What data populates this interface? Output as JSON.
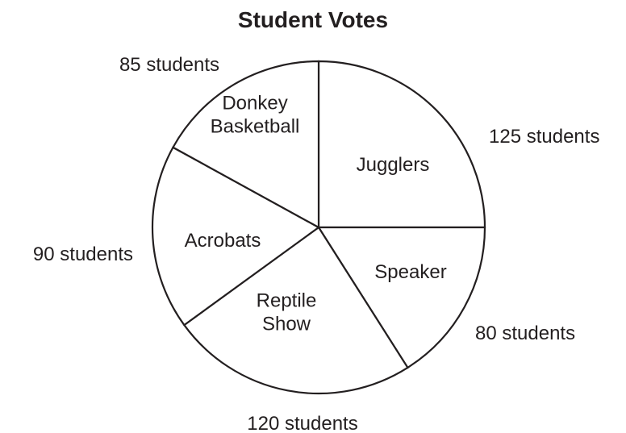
{
  "chart_data": {
    "type": "pie",
    "title": "Student Votes",
    "unit": "students",
    "slices": [
      {
        "label_lines": [
          "Jugglers"
        ],
        "value": 125,
        "value_label": "125 students"
      },
      {
        "label_lines": [
          "Speaker"
        ],
        "value": 80,
        "value_label": "80 students"
      },
      {
        "label_lines": [
          "Reptile",
          "Show"
        ],
        "value": 120,
        "value_label": "120 students"
      },
      {
        "label_lines": [
          "Acrobats"
        ],
        "value": 90,
        "value_label": "90 students"
      },
      {
        "label_lines": [
          "Donkey",
          "Basketball"
        ],
        "value": 85,
        "value_label": "85 students"
      }
    ],
    "start": "12 o'clock",
    "direction": "clockwise",
    "colors": {
      "line": "#231f20",
      "fill": "#ffffff",
      "text": "#231f20"
    }
  }
}
